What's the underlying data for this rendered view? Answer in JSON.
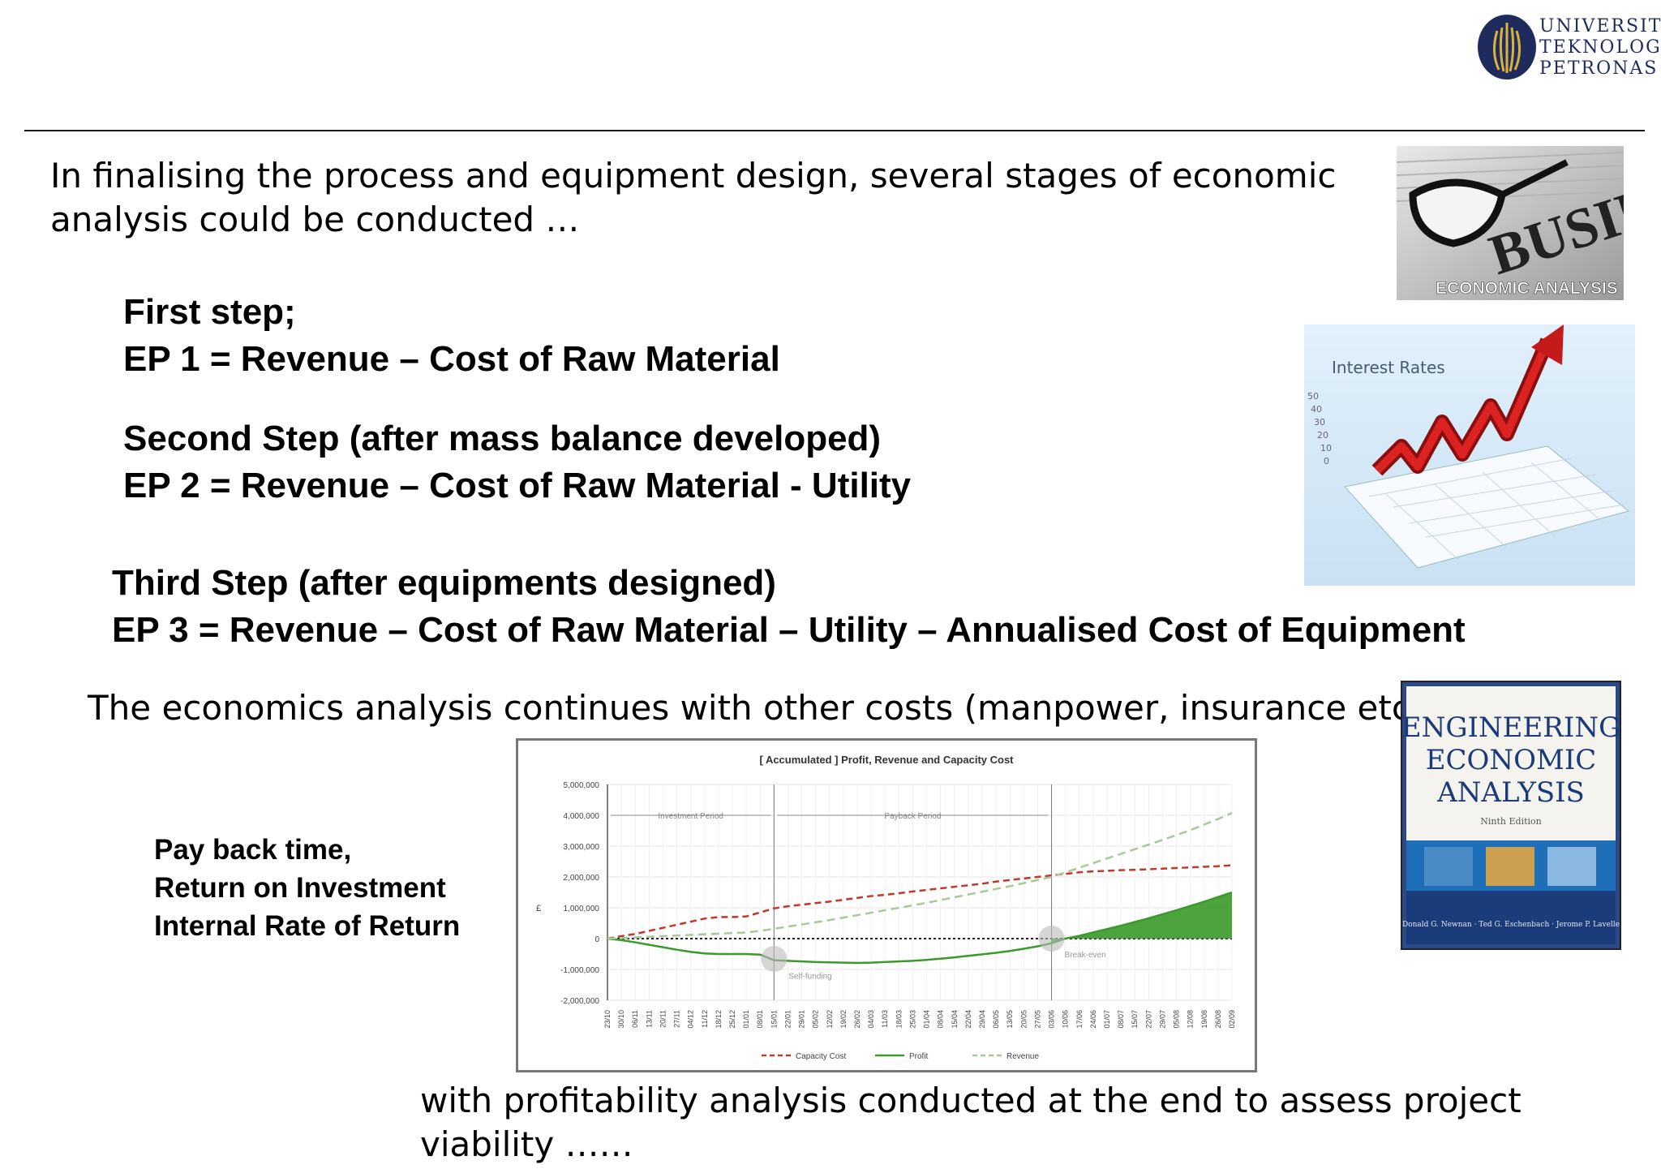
{
  "logo": {
    "lines": [
      "UNIVERSITI",
      "TEKNOLOGI",
      "PETRONAS"
    ]
  },
  "intro_text": "In finalising the process and equipment design, several stages of economic analysis could be conducted …",
  "steps": [
    {
      "heading": "First step;",
      "formula": "EP 1  =  Revenue – Cost of Raw Material"
    },
    {
      "heading": "Second Step (after mass balance developed)",
      "formula": "EP 2  =  Revenue – Cost of Raw Material - Utility"
    },
    {
      "heading": "Third Step (after equipments designed)",
      "formula": "EP 3  =  Revenue – Cost of Raw Material – Utility – Annualised Cost of Equipment"
    }
  ],
  "continuation_text": "The economics analysis continues with other costs (manpower, insurance etc) ….",
  "metrics": [
    "Pay back time,",
    "Return on Investment",
    "Internal Rate of Return"
  ],
  "final_text": "with profitability analysis conducted at the end to assess project viability ……",
  "images": {
    "business_caption": "ECONOMIC ANALYSIS",
    "business_word": "BUSINESS",
    "interest_title": "Interest Rates",
    "interest_ticks": [
      "50",
      "40",
      "30",
      "20",
      "10",
      "0"
    ],
    "book_title": [
      "ENGINEERING",
      "ECONOMIC",
      "ANALYSIS"
    ],
    "book_edition": "Ninth Edition",
    "book_authors": "Donald G. Newnan · Ted G. Eschenbach · Jerome P. Lavelle"
  },
  "chart_data": {
    "type": "line",
    "title": "[ Accumulated ] Profit, Revenue and Capacity Cost",
    "ylabel": "£",
    "ylim": [
      -2000000,
      5000000
    ],
    "yticks": [
      "5,000,000",
      "4,000,000",
      "3,000,000",
      "2,000,000",
      "1,000,000",
      "0",
      "-1,000,000",
      "-2,000,000"
    ],
    "x": [
      "23/10",
      "30/10",
      "06/11",
      "13/11",
      "20/11",
      "27/11",
      "04/12",
      "11/12",
      "18/12",
      "25/12",
      "01/01",
      "08/01",
      "15/01",
      "22/01",
      "29/01",
      "05/02",
      "12/02",
      "19/02",
      "26/02",
      "04/03",
      "11/03",
      "18/03",
      "25/03",
      "01/04",
      "08/04",
      "15/04",
      "22/04",
      "29/04",
      "06/05",
      "13/05",
      "20/05",
      "27/05",
      "03/06",
      "10/06",
      "17/06",
      "24/06",
      "01/07",
      "08/07",
      "15/07",
      "22/07",
      "29/07",
      "05/08",
      "12/08",
      "19/08",
      "26/08",
      "02/09"
    ],
    "series": [
      {
        "name": "Capacity Cost",
        "color": "#c0392b",
        "values": [
          0,
          80000,
          150000,
          250000,
          350000,
          450000,
          550000,
          650000,
          700000,
          700000,
          720000,
          850000,
          980000,
          1050000,
          1100000,
          1150000,
          1200000,
          1260000,
          1320000,
          1380000,
          1420000,
          1470000,
          1530000,
          1580000,
          1630000,
          1680000,
          1730000,
          1780000,
          1850000,
          1900000,
          1950000,
          2000000,
          2050000,
          2100000,
          2150000,
          2180000,
          2200000,
          2220000,
          2230000,
          2250000,
          2270000,
          2290000,
          2310000,
          2330000,
          2350000,
          2380000
        ]
      },
      {
        "name": "Profit",
        "color": "#3a9a2a",
        "values": [
          0,
          -50000,
          -120000,
          -200000,
          -280000,
          -360000,
          -430000,
          -480000,
          -500000,
          -500000,
          -500000,
          -520000,
          -700000,
          -720000,
          -740000,
          -760000,
          -770000,
          -780000,
          -790000,
          -780000,
          -760000,
          -740000,
          -720000,
          -690000,
          -650000,
          -610000,
          -560000,
          -510000,
          -460000,
          -400000,
          -330000,
          -250000,
          -150000,
          0,
          90000,
          200000,
          310000,
          420000,
          540000,
          660000,
          790000,
          920000,
          1060000,
          1200000,
          1350000,
          1500000
        ]
      },
      {
        "name": "Revenue",
        "color": "#a8c89a",
        "values": [
          0,
          20000,
          40000,
          60000,
          80000,
          100000,
          120000,
          140000,
          160000,
          180000,
          200000,
          250000,
          320000,
          390000,
          460000,
          530000,
          600000,
          680000,
          760000,
          840000,
          920000,
          1000000,
          1080000,
          1160000,
          1250000,
          1340000,
          1430000,
          1520000,
          1610000,
          1700000,
          1800000,
          1900000,
          2000000,
          2150000,
          2300000,
          2450000,
          2600000,
          2750000,
          2900000,
          3050000,
          3200000,
          3360000,
          3520000,
          3700000,
          3880000,
          4080000
        ]
      }
    ],
    "annotations": [
      "Investment Period",
      "Payback Period",
      "Self-funding",
      "Break-even"
    ],
    "legend_position": "bottom"
  }
}
